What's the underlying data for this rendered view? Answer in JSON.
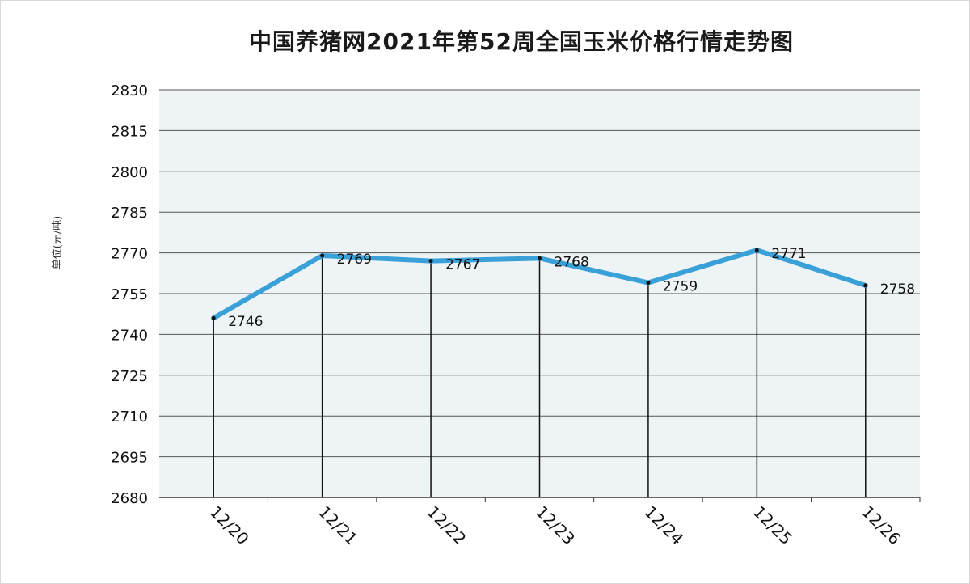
{
  "chart_data": {
    "type": "line",
    "title": "中国养猪网2021年第52周全国玉米价格行情走势图",
    "ylabel": "单位(元/吨)",
    "xlabel": "",
    "categories": [
      "12/20",
      "12/21",
      "12/22",
      "12/23",
      "12/24",
      "12/25",
      "12/26"
    ],
    "series": [
      {
        "values": [
          2746,
          2769,
          2767,
          2768,
          2759,
          2771,
          2758
        ]
      }
    ],
    "data_labels": [
      "2746",
      "2769",
      "2767",
      "2768",
      "2759",
      "2771",
      "2758"
    ],
    "ylim": [
      2680,
      2830
    ],
    "yticks": [
      "2680",
      "2695",
      "2710",
      "2725",
      "2740",
      "2755",
      "2770",
      "2785",
      "2800",
      "2815",
      "2830"
    ],
    "grid": true,
    "drop_lines": true,
    "colors": {
      "line": "#3aa1d8",
      "plot_bg": "#eef3f5",
      "grid": "#555555"
    }
  }
}
